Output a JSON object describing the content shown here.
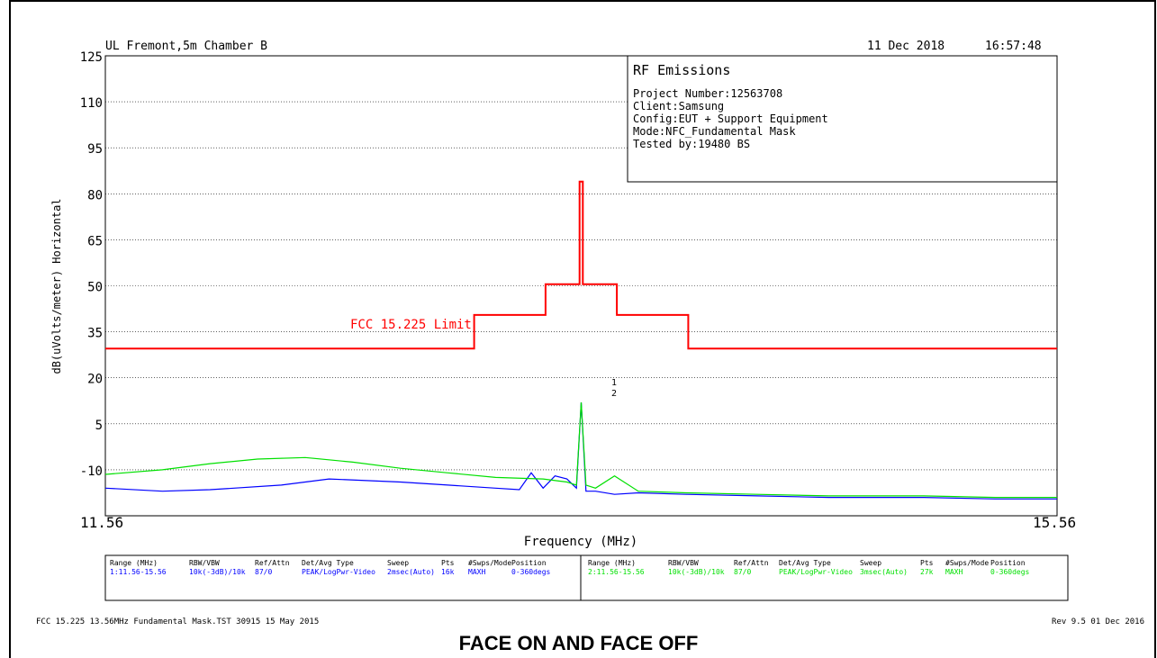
{
  "header": {
    "lab": "UL Fremont,5m Chamber B",
    "date": "11 Dec 2018",
    "time": "16:57:48"
  },
  "infobox": {
    "title": "RF Emissions",
    "lines": [
      "Project Number:12563708",
      "Client:Samsung",
      "Config:EUT + Support Equipment",
      "Mode:NFC_Fundamental Mask",
      "Tested by:19480 BS"
    ]
  },
  "colors": {
    "limit": "#ff0000",
    "trace1": "#0000ff",
    "trace2": "#00e000",
    "grid": "#000000"
  },
  "settings_table": {
    "group1": {
      "color": "#0000ff",
      "headers": [
        "Range (MHz)",
        "RBW/VBW",
        "Ref/Attn",
        "Det/Avg Type",
        "Sweep",
        "Pts",
        "#Swps/Mode",
        "Position"
      ],
      "values": [
        "1:11.56-15.56",
        "10k(-3dB)/10k",
        "87/0",
        "PEAK/LogPwr-Video",
        "2msec(Auto)",
        "16k",
        "MAXH",
        "0-360degs"
      ]
    },
    "group2": {
      "color": "#00e000",
      "headers": [
        "Range (MHz)",
        "RBW/VBW",
        "Ref/Attn",
        "Det/Avg Type",
        "Sweep",
        "Pts",
        "#Swps/Mode",
        "Position"
      ],
      "values": [
        "2:11.56-15.56",
        "10k(-3dB)/10k",
        "87/0",
        "PEAK/LogPwr-Video",
        "3msec(Auto)",
        "27k",
        "MAXH",
        "0-360degs"
      ]
    }
  },
  "footer": {
    "left": "FCC 15.225 13.56MHz Fundamental Mask.TST 30915 15 May 2015",
    "right": "Rev 9.5 01 Dec 2016"
  },
  "caption": "FACE ON AND FACE OFF",
  "chart_data": {
    "type": "line",
    "title": "",
    "xlabel": "Frequency (MHz)",
    "ylabel": "dB(uVolts/meter) Horizontal",
    "xlim": [
      11.56,
      15.56
    ],
    "ylim": [
      -25,
      125
    ],
    "x_tick_labels": [
      "11.56",
      "15.56"
    ],
    "y_ticks": [
      125,
      110,
      95,
      80,
      65,
      50,
      35,
      20,
      5,
      -10
    ],
    "grid": true,
    "marker_labels": [
      "1",
      "2"
    ],
    "series": [
      {
        "name": "FCC 15.225 Limit",
        "color": "#ff0000",
        "x": [
          11.56,
          13.11,
          13.11,
          13.41,
          13.41,
          13.553,
          13.553,
          13.567,
          13.567,
          13.71,
          13.71,
          14.01,
          14.01,
          15.56
        ],
        "y": [
          29.5,
          29.5,
          40.5,
          40.5,
          50.5,
          50.5,
          84,
          84,
          50.5,
          50.5,
          40.5,
          40.5,
          29.5,
          29.5
        ]
      },
      {
        "name": "1:11.56-15.56",
        "color": "#0000ff",
        "x": [
          11.56,
          11.8,
          12.0,
          12.3,
          12.5,
          12.8,
          13.0,
          13.2,
          13.3,
          13.35,
          13.4,
          13.45,
          13.5,
          13.54,
          13.56,
          13.58,
          13.62,
          13.7,
          13.8,
          14.0,
          14.3,
          14.6,
          15.0,
          15.3,
          15.56
        ],
        "y": [
          -16,
          -17,
          -16.5,
          -15,
          -13,
          -14,
          -15,
          -16,
          -16.5,
          -11,
          -16,
          -12,
          -13,
          -16,
          12,
          -17,
          -17,
          -18,
          -17.5,
          -18,
          -18.5,
          -19,
          -19,
          -19.5,
          -19.5
        ]
      },
      {
        "name": "2:11.56-15.56",
        "color": "#00e000",
        "x": [
          11.56,
          11.8,
          12.0,
          12.2,
          12.4,
          12.6,
          12.8,
          13.0,
          13.2,
          13.4,
          13.5,
          13.54,
          13.56,
          13.58,
          13.62,
          13.7,
          13.8,
          14.0,
          14.3,
          14.6,
          15.0,
          15.3,
          15.56
        ],
        "y": [
          -11.5,
          -10,
          -8,
          -6.5,
          -6,
          -7.5,
          -9.5,
          -11,
          -12.5,
          -13,
          -14,
          -15,
          12,
          -15,
          -16,
          -12,
          -17,
          -17.5,
          -18,
          -18.5,
          -18.5,
          -19,
          -19
        ]
      }
    ]
  }
}
